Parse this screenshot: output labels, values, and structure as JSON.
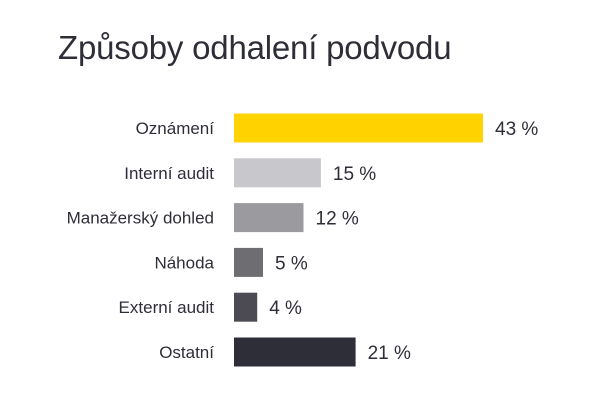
{
  "chart_data": {
    "type": "bar",
    "orientation": "horizontal",
    "title": "Způsoby odhalení podvodu",
    "categories": [
      "Oznámení",
      "Interní audit",
      "Manažerský dohled",
      "Náhoda",
      "Externí audit",
      "Ostatní"
    ],
    "values": [
      43,
      15,
      12,
      5,
      4,
      21
    ],
    "value_labels": [
      "43 %",
      "15 %",
      "12 %",
      "5 %",
      "4 %",
      "21 %"
    ],
    "unit": "%",
    "xlim": [
      0,
      43
    ],
    "grid": false,
    "legend": "none",
    "colors": [
      "#ffd200",
      "#c8c7cc",
      "#9b9a9f",
      "#6e6d72",
      "#4c4b53",
      "#2e2e38"
    ]
  }
}
